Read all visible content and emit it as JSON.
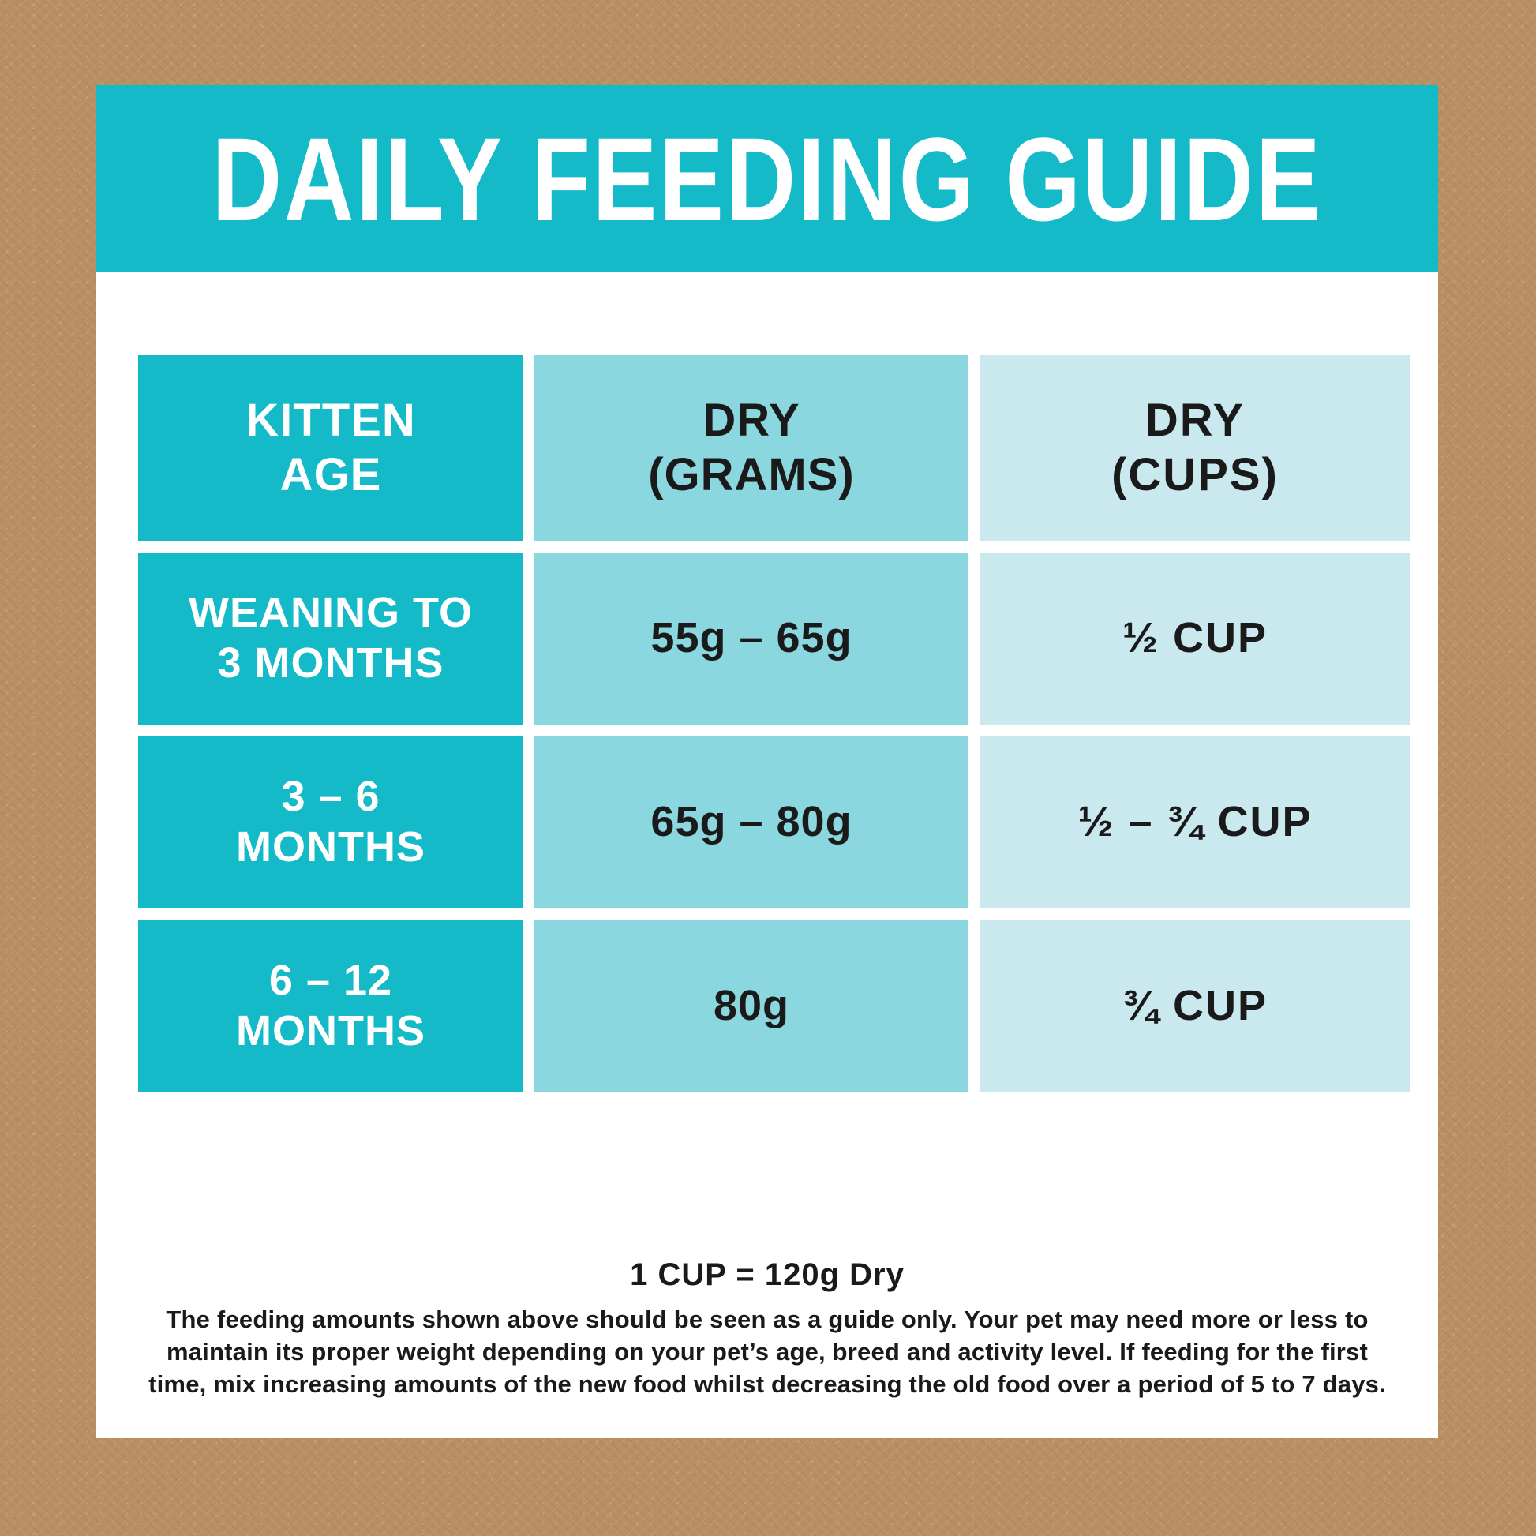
{
  "header": {
    "title": "DAILY FEEDING GUIDE"
  },
  "table": {
    "header": {
      "age": "KITTEN\nAGE",
      "grams": "DRY\n(GRAMS)",
      "cups": "DRY\n(CUPS)"
    },
    "rows": [
      {
        "age": "WEANING TO\n3 MONTHS",
        "grams": "55g – 65g",
        "cups": "½ CUP"
      },
      {
        "age": "3 – 6\nMONTHS",
        "grams": "65g – 80g",
        "cups": "½ – ¾ CUP"
      },
      {
        "age": "6 – 12\nMONTHS",
        "grams": "80g",
        "cups": "¾ CUP"
      }
    ]
  },
  "footer": {
    "cup_note": "1 CUP = 120g Dry",
    "disclaimer": "The feeding amounts shown above should be seen as a guide only. Your pet may need more or less to maintain its proper weight depending on your pet’s age, breed and activity level. If feeding for the first time, mix increasing amounts of the new food whilst decreasing the old food over a period of 5 to 7 days."
  },
  "colors": {
    "teal": "#14bac8",
    "teal_medium": "#8bd7df",
    "teal_light": "#c9e9ef",
    "background_brown": "#ba8f64",
    "text_dark": "#1a1a1a"
  },
  "chart_data": {
    "type": "table",
    "title": "DAILY FEEDING GUIDE",
    "columns": [
      "KITTEN AGE",
      "DRY (GRAMS)",
      "DRY (CUPS)"
    ],
    "rows": [
      [
        "WEANING TO 3 MONTHS",
        "55g – 65g",
        "½ CUP"
      ],
      [
        "3 – 6 MONTHS",
        "65g – 80g",
        "½ – ¾ CUP"
      ],
      [
        "6 – 12 MONTHS",
        "80g",
        "¾ CUP"
      ]
    ],
    "notes": [
      "1 CUP = 120g Dry",
      "The feeding amounts shown above should be seen as a guide only. Your pet may need more or less to maintain its proper weight depending on your pet’s age, breed and activity level. If feeding for the first time, mix increasing amounts of the new food whilst decreasing the old food over a period of 5 to 7 days."
    ]
  }
}
